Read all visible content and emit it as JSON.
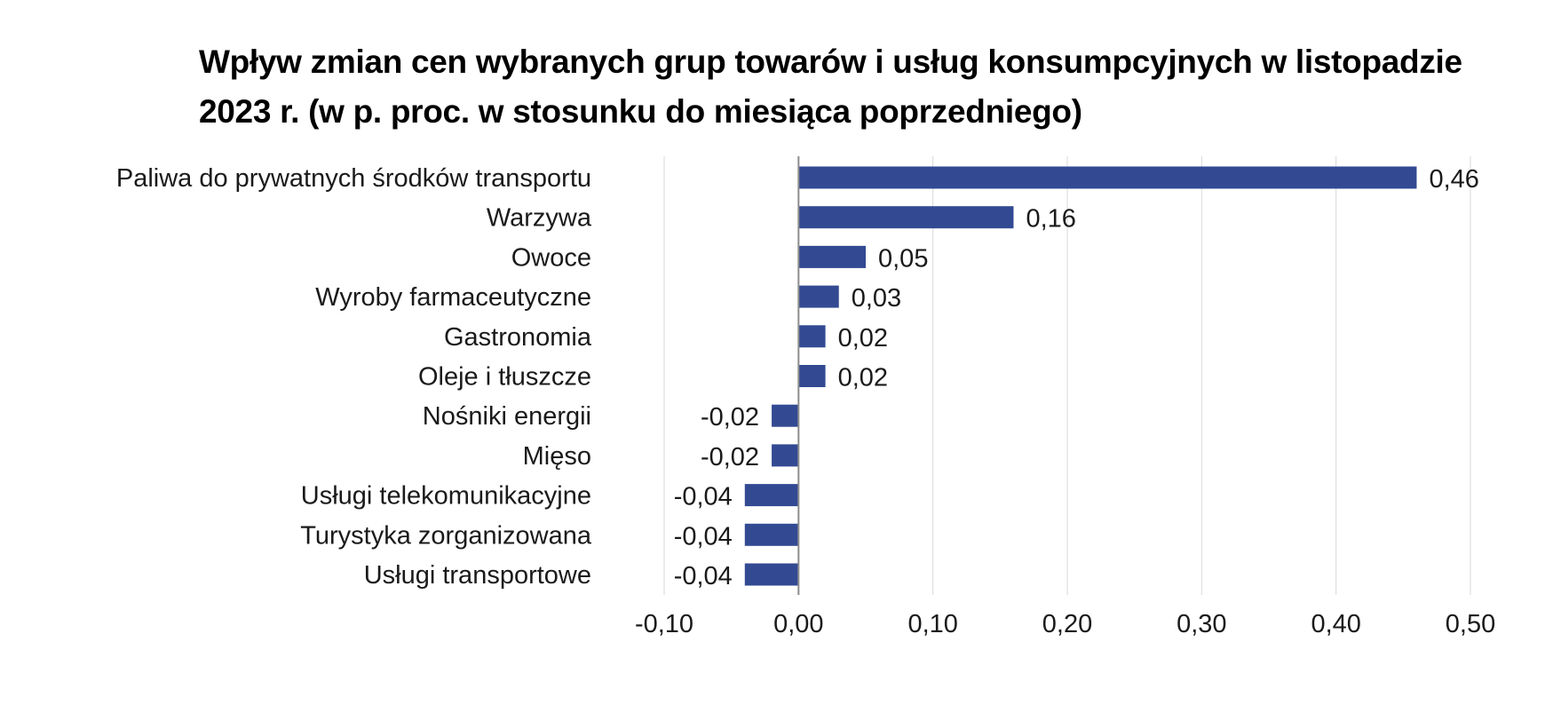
{
  "chart_data": {
    "type": "bar",
    "orientation": "horizontal",
    "title": "Wpływ zmian cen wybranych grup towarów i usług konsumpcyjnych w listopadzie 2023 r. (w p. proc. w stosunku do miesiąca poprzedniego)",
    "categories": [
      "Paliwa do prywatnych środków transportu",
      "Warzywa",
      "Owoce",
      "Wyroby farmaceutyczne",
      "Gastronomia",
      "Oleje i tłuszcze",
      "Nośniki energii",
      "Mięso",
      "Usługi telekomunikacyjne",
      "Turystyka zorganizowana",
      "Usługi transportowe"
    ],
    "values": [
      0.46,
      0.16,
      0.05,
      0.03,
      0.02,
      0.02,
      -0.02,
      -0.02,
      -0.04,
      -0.04,
      -0.04
    ],
    "value_labels": [
      "0,46",
      "0,16",
      "0,05",
      "0,03",
      "0,02",
      "0,02",
      "-0,02",
      "-0,02",
      "-0,04",
      "-0,04",
      "-0,04"
    ],
    "xlim": [
      -0.1,
      0.5
    ],
    "xticks": [
      -0.1,
      0.0,
      0.1,
      0.2,
      0.3,
      0.4,
      0.5
    ],
    "xtick_labels": [
      "-0,10",
      "0,00",
      "0,10",
      "0,20",
      "0,30",
      "0,40",
      "0,50"
    ],
    "grid": "vertical",
    "colors": {
      "bar": "#334a93",
      "grid": "#d9d9d9",
      "zero_axis": "#8c8c8c"
    }
  }
}
